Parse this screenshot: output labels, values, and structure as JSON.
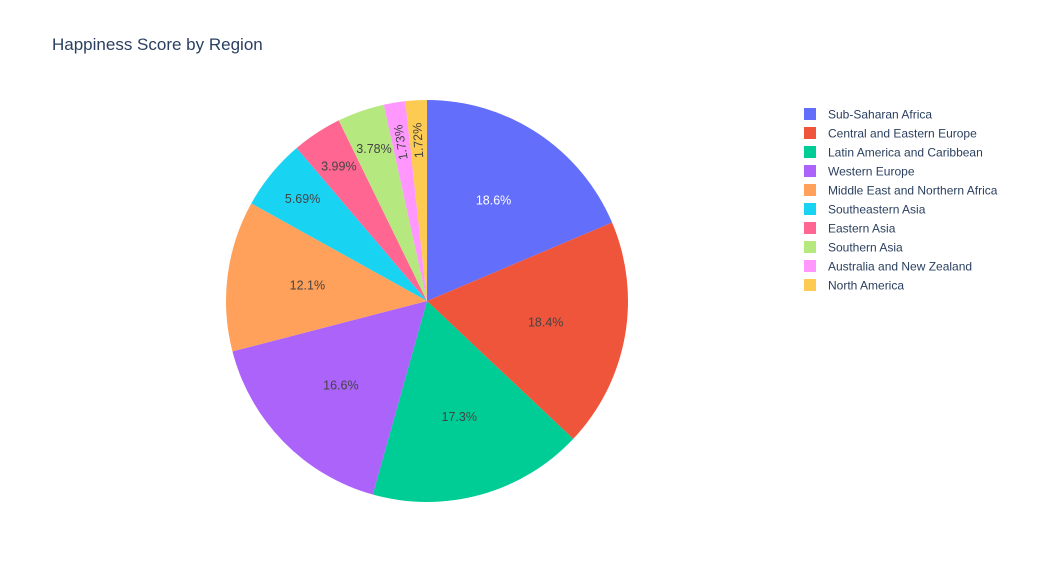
{
  "chart_data": {
    "type": "pie",
    "title": "Happiness Score by Region",
    "labels": [
      "Sub-Saharan Africa",
      "Central and Eastern Europe",
      "Latin America and Caribbean",
      "Western Europe",
      "Middle East and Northern Africa",
      "Southeastern Asia",
      "Eastern Asia",
      "Southern Asia",
      "Australia and New Zealand",
      "North America"
    ],
    "values": [
      18.6,
      18.4,
      17.3,
      16.6,
      12.1,
      5.69,
      3.99,
      3.78,
      1.73,
      1.72
    ],
    "text_labels": [
      "18.6%",
      "18.4%",
      "17.3%",
      "16.6%",
      "12.1%",
      "5.69%",
      "3.99%",
      "3.78%",
      "1.73%",
      "1.72%"
    ],
    "colors": [
      "#636efa",
      "#ef553b",
      "#00cc96",
      "#ab63fa",
      "#ffa15a",
      "#19d3f3",
      "#ff6692",
      "#b6e880",
      "#ff97ff",
      "#fecb52"
    ],
    "label_colors": [
      "#ffffff",
      "#444444",
      "#444444",
      "#444444",
      "#444444",
      "#444444",
      "#444444",
      "#444444",
      "#444444",
      "#444444"
    ],
    "direction": "clockwise",
    "start": "top",
    "legend_position": "right"
  }
}
